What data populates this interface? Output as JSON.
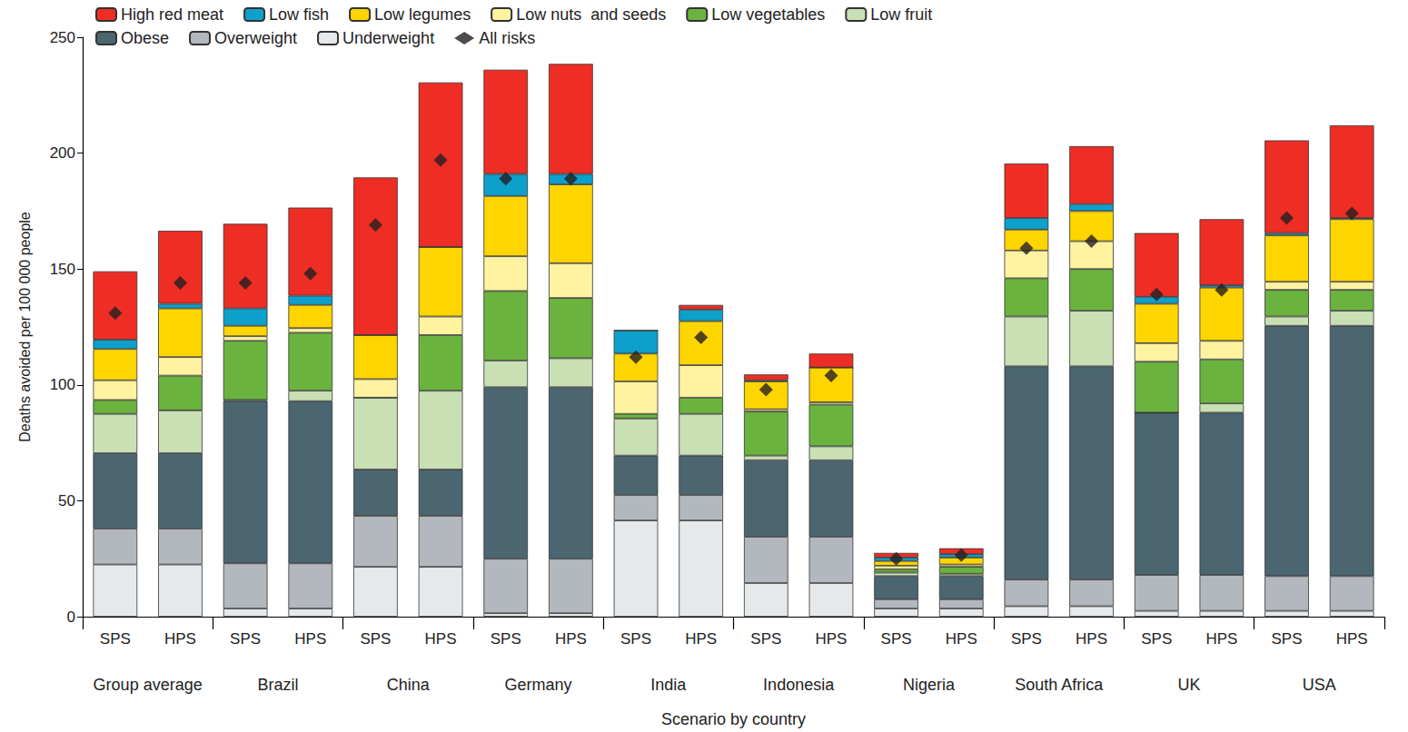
{
  "chart_data": {
    "type": "bar",
    "stacked": true,
    "x_label": "Scenario by country",
    "y_label": "Deaths avoided per 100 000 people",
    "categories": [
      "SPS",
      "HPS",
      "SPS",
      "HPS",
      "SPS",
      "HPS",
      "SPS",
      "HPS",
      "SPS",
      "HPS",
      "SPS",
      "HPS",
      "SPS",
      "HPS",
      "SPS",
      "HPS",
      "SPS",
      "HPS",
      "SPS",
      "HPS"
    ],
    "group_labels": [
      "Group average",
      "Brazil",
      "China",
      "Germany",
      "India",
      "Indonesia",
      "Nigeria",
      "South Africa",
      "UK",
      "USA"
    ],
    "ylim": [
      0,
      250
    ],
    "yticks": [
      0,
      50,
      100,
      150,
      200,
      250
    ],
    "grid": false,
    "legend": "top-left",
    "series": [
      {
        "name": "High red meat",
        "type": "bar",
        "color": "#ee2d24",
        "values": [
          29.5,
          31.5,
          36.5,
          38,
          68,
          71,
          45,
          47.5,
          0,
          2,
          2.5,
          6,
          2,
          2.5,
          23.5,
          25,
          27.5,
          28.5,
          40,
          40
        ]
      },
      {
        "name": "Low fish",
        "type": "bar",
        "color": "#0da0cb",
        "values": [
          4,
          2,
          7.5,
          4,
          0,
          0,
          9.5,
          4.5,
          10,
          5,
          0.5,
          0,
          1.5,
          1.5,
          5,
          3,
          3,
          1,
          1,
          0.5
        ]
      },
      {
        "name": "Low legumes",
        "type": "bar",
        "color": "#ffd500",
        "values": [
          13.5,
          21,
          4.5,
          10,
          19,
          30,
          26,
          34,
          12,
          19,
          12,
          15,
          2,
          3,
          9,
          13,
          17,
          23,
          20,
          27
        ]
      },
      {
        "name": "Low nuts  and seeds",
        "type": "bar",
        "color": "#fff3a0",
        "values": [
          8.5,
          8,
          2,
          2,
          8,
          8,
          15,
          15,
          14,
          14,
          1,
          1,
          1.5,
          1,
          12,
          12,
          8,
          8,
          3.5,
          3.5
        ]
      },
      {
        "name": "Low vegetables",
        "type": "bar",
        "color": "#6bb33f",
        "values": [
          6,
          15,
          25.5,
          25,
          0,
          24,
          30,
          26,
          2,
          7,
          19,
          18,
          1.5,
          3,
          16.5,
          18,
          22,
          19,
          11.5,
          9
        ]
      },
      {
        "name": "Low fruit",
        "type": "bar",
        "color": "#c9e0b4",
        "values": [
          17,
          18.5,
          0.5,
          4.5,
          31,
          34,
          11.5,
          12.5,
          16,
          18,
          2,
          6,
          1.5,
          1,
          21.5,
          24,
          0,
          4,
          4,
          6.5
        ]
      },
      {
        "name": "Obese",
        "type": "bar",
        "color": "#4b6671",
        "values": [
          32.5,
          32.5,
          70,
          70,
          20,
          20,
          74,
          74,
          17,
          17,
          33,
          33,
          10,
          10,
          92,
          92,
          70,
          70,
          108,
          108
        ]
      },
      {
        "name": "Overweight",
        "type": "bar",
        "color": "#b3b8be",
        "values": [
          15.5,
          15.5,
          19.5,
          19.5,
          22,
          22,
          23.5,
          23.5,
          11,
          11,
          20,
          20,
          4,
          4,
          11.5,
          11.5,
          15.5,
          15.5,
          15,
          15
        ]
      },
      {
        "name": "Underweight",
        "type": "bar",
        "color": "#e6e9ec",
        "values": [
          22.5,
          22.5,
          3.5,
          3.5,
          21.5,
          21.5,
          1.5,
          1.5,
          41.5,
          41.5,
          14.5,
          14.5,
          3.5,
          3.5,
          4.5,
          4.5,
          2.5,
          2.5,
          2.5,
          2.5
        ]
      },
      {
        "name": "All risks",
        "type": "scatter",
        "marker": "diamond",
        "color": "#231f20",
        "values": [
          131,
          144,
          144,
          148,
          169,
          197,
          189,
          189,
          112,
          120.5,
          98,
          104,
          25,
          26.5,
          159,
          162,
          139,
          141,
          172,
          174
        ]
      }
    ]
  }
}
